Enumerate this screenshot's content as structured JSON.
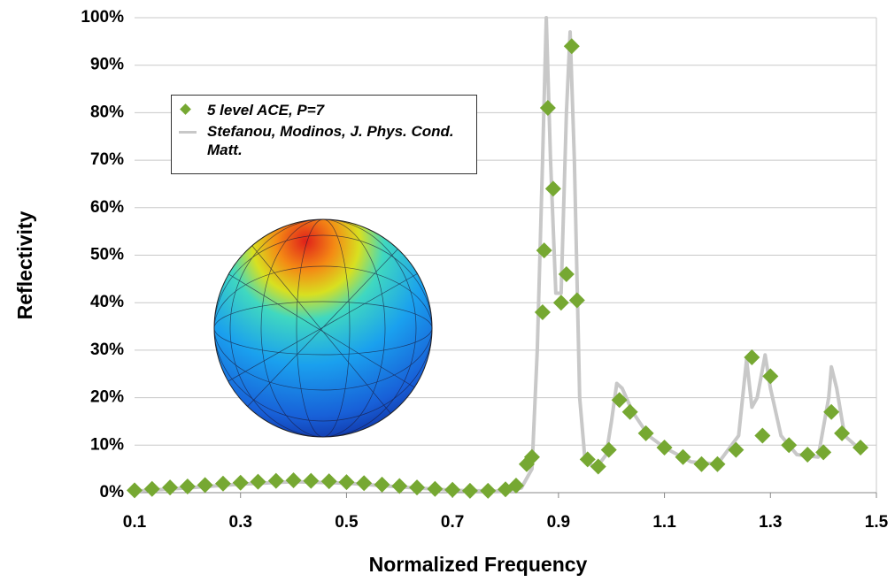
{
  "chart_data": {
    "type": "scatter-line",
    "x_label": "Normalized Frequency",
    "y_label": "Reflectivity",
    "xlim": [
      0.1,
      1.5
    ],
    "xticks": [
      0.1,
      0.3,
      0.5,
      0.7,
      0.9,
      1.1,
      1.3,
      1.5
    ],
    "ylim": [
      0,
      100
    ],
    "yticks": [
      {
        "value": 0,
        "label": "0%"
      },
      {
        "value": 10,
        "label": "10%"
      },
      {
        "value": 20,
        "label": "20%"
      },
      {
        "value": 30,
        "label": "30%"
      },
      {
        "value": 40,
        "label": "40%"
      },
      {
        "value": 50,
        "label": "50%"
      },
      {
        "value": 60,
        "label": "60%"
      },
      {
        "value": 70,
        "label": "70%"
      },
      {
        "value": 80,
        "label": "80%"
      },
      {
        "value": 90,
        "label": "90%"
      },
      {
        "value": 100,
        "label": "100%"
      }
    ],
    "grid": true,
    "series": [
      {
        "name": "5 level ACE, P=7",
        "kind": "markers",
        "color": "#76a832",
        "x": [
          0.1,
          0.133,
          0.167,
          0.2,
          0.233,
          0.267,
          0.3,
          0.333,
          0.367,
          0.4,
          0.433,
          0.467,
          0.5,
          0.533,
          0.567,
          0.6,
          0.633,
          0.667,
          0.7,
          0.733,
          0.767,
          0.8,
          0.82,
          0.84,
          0.85,
          0.87,
          0.873,
          0.88,
          0.89,
          0.905,
          0.915,
          0.925,
          0.935,
          0.955,
          0.975,
          0.995,
          1.015,
          1.035,
          1.065,
          1.1,
          1.135,
          1.17,
          1.2,
          1.235,
          1.265,
          1.285,
          1.3,
          1.335,
          1.37,
          1.4,
          1.415,
          1.435,
          1.47
        ],
        "values": [
          0.5,
          0.8,
          1.1,
          1.3,
          1.6,
          1.9,
          2.1,
          2.3,
          2.5,
          2.6,
          2.5,
          2.4,
          2.2,
          2.0,
          1.7,
          1.4,
          1.1,
          0.8,
          0.6,
          0.4,
          0.4,
          0.7,
          1.5,
          6,
          7.5,
          38,
          51,
          81,
          64,
          40,
          46,
          94,
          40.5,
          7,
          5.5,
          9,
          19.5,
          17,
          12.5,
          9.5,
          7.5,
          6,
          6,
          9,
          28.5,
          12,
          24.5,
          10,
          8,
          8.5,
          17,
          12.5,
          9.5
        ]
      },
      {
        "name": "Stefanou, Modinos, J. Phys. Cond. Matt.",
        "kind": "line",
        "color": "#c8c8c8",
        "x": [
          0.1,
          0.2,
          0.3,
          0.4,
          0.5,
          0.6,
          0.7,
          0.8,
          0.83,
          0.85,
          0.86,
          0.87,
          0.877,
          0.885,
          0.895,
          0.905,
          0.915,
          0.922,
          0.93,
          0.94,
          0.95,
          0.97,
          0.99,
          1.0,
          1.01,
          1.02,
          1.04,
          1.07,
          1.1,
          1.15,
          1.2,
          1.24,
          1.255,
          1.265,
          1.275,
          1.29,
          1.3,
          1.32,
          1.35,
          1.39,
          1.41,
          1.415,
          1.425,
          1.44,
          1.47
        ],
        "values": [
          0.3,
          1,
          1.8,
          2.3,
          2,
          1.2,
          0.5,
          0.3,
          1,
          5,
          30,
          70,
          100,
          70,
          42,
          42,
          80,
          97,
          70,
          20,
          7,
          5,
          8,
          15,
          23,
          22,
          17,
          12,
          9.5,
          6.5,
          6,
          12,
          28,
          18,
          20,
          29,
          22,
          12,
          8,
          7.5,
          20,
          26.5,
          22,
          12,
          9
        ]
      }
    ]
  }
}
